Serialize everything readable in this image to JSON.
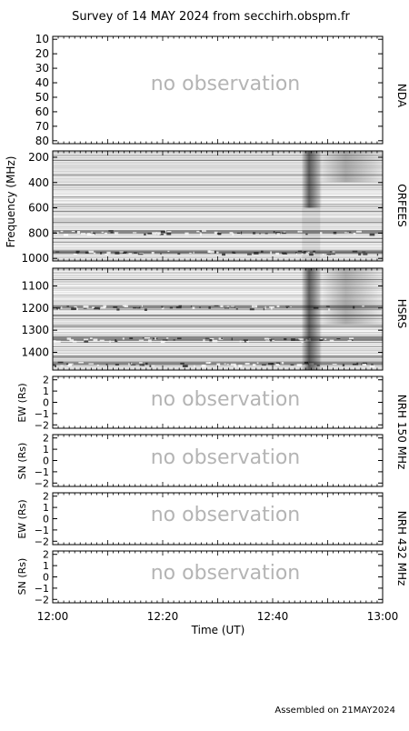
{
  "title": "Survey of 14 MAY 2024 from secchirh.obspm.fr",
  "footer": "Assembled on 21MAY2024",
  "no_observation_text": "no observation",
  "colors": {
    "frame": "#000000",
    "no_obs_text": "#b4b4b4",
    "spectrogram_bg": "#dcdcdc"
  },
  "chart_data": [
    {
      "type": "heatmap",
      "name": "NDA",
      "status": "no observation",
      "ylabel": "",
      "yticks": [
        "10",
        "20",
        "30",
        "40",
        "50",
        "60",
        "70",
        "80"
      ],
      "ylim": [
        8,
        82
      ],
      "y_inverted": true
    },
    {
      "type": "heatmap",
      "name": "ORFEES",
      "ylabel": "Frequency (MHz)",
      "yticks": [
        "200",
        "400",
        "600",
        "800",
        "1000"
      ],
      "ylim": [
        150,
        1020
      ],
      "y_inverted": true,
      "features": [
        {
          "kind": "burst",
          "time": "12:47",
          "freq_range": [
            150,
            600
          ]
        },
        {
          "kind": "band",
          "freq": 790
        },
        {
          "kind": "band",
          "freq": 950
        }
      ]
    },
    {
      "type": "heatmap",
      "name": "HSRS",
      "yticks": [
        "1100",
        "1200",
        "1300",
        "1400"
      ],
      "ylim": [
        1020,
        1480
      ],
      "y_inverted": true,
      "features": [
        {
          "kind": "burst",
          "time": "12:47",
          "freq_range": [
            1020,
            1480
          ]
        },
        {
          "kind": "band",
          "freq": 1195
        },
        {
          "kind": "band",
          "freq": 1340
        },
        {
          "kind": "band",
          "freq": 1450
        }
      ]
    },
    {
      "type": "heatmap",
      "group": "NRH 150 MHz",
      "ylabel": "EW (Rs)",
      "status": "no observation",
      "yticks": [
        "2",
        "1",
        "0",
        "−1",
        "−2"
      ],
      "ylim": [
        -2.3,
        2.3
      ]
    },
    {
      "type": "heatmap",
      "group": "NRH 150 MHz",
      "ylabel": "SN (Rs)",
      "status": "no observation",
      "yticks": [
        "2",
        "1",
        "0",
        "−1",
        "−2"
      ],
      "ylim": [
        -2.3,
        2.3
      ]
    },
    {
      "type": "heatmap",
      "group": "NRH 432 MHz",
      "ylabel": "EW (Rs)",
      "status": "no observation",
      "yticks": [
        "2",
        "1",
        "0",
        "−1",
        "−2"
      ],
      "ylim": [
        -2.3,
        2.3
      ]
    },
    {
      "type": "heatmap",
      "group": "NRH 432 MHz",
      "ylabel": "SN (Rs)",
      "status": "no observation",
      "yticks": [
        "2",
        "1",
        "0",
        "−1",
        "−2"
      ],
      "ylim": [
        -2.3,
        2.3
      ]
    }
  ],
  "x_axis": {
    "label": "Time (UT)",
    "ticks": [
      "12:00",
      "12:20",
      "12:40",
      "13:00"
    ],
    "range_minutes": [
      0,
      60
    ]
  },
  "side_labels": {
    "nda": "NDA",
    "orfees": "ORFEES",
    "hsrs": "HSRS",
    "nrh150": "NRH 150 MHz",
    "nrh432": "NRH 432 MHz"
  }
}
